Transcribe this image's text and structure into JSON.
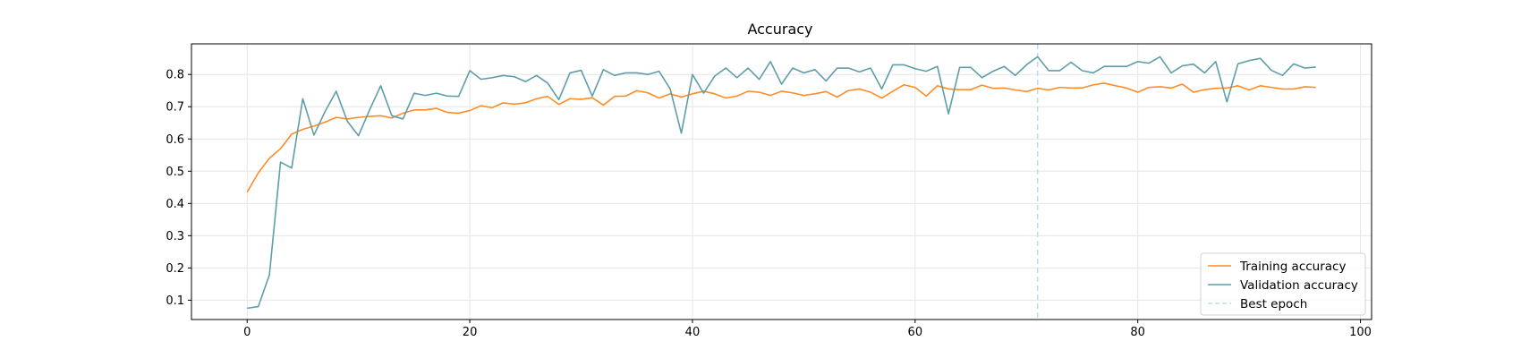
{
  "chart_data": {
    "type": "line",
    "title": "Accuracy",
    "xlabel": "",
    "ylabel": "",
    "xlim": [
      -5,
      101
    ],
    "ylim": [
      0.04,
      0.895
    ],
    "xticks": [
      0,
      20,
      40,
      60,
      80,
      100
    ],
    "yticks": [
      0.1,
      0.2,
      0.3,
      0.4,
      0.5,
      0.6,
      0.7,
      0.8
    ],
    "grid": true,
    "legend_position": "lower-right",
    "x": [
      0,
      1,
      2,
      3,
      4,
      5,
      6,
      7,
      8,
      9,
      10,
      11,
      12,
      13,
      14,
      15,
      16,
      17,
      18,
      19,
      20,
      21,
      22,
      23,
      24,
      25,
      26,
      27,
      28,
      29,
      30,
      31,
      32,
      33,
      34,
      35,
      36,
      37,
      38,
      39,
      40,
      41,
      42,
      43,
      44,
      45,
      46,
      47,
      48,
      49,
      50,
      51,
      52,
      53,
      54,
      55,
      56,
      57,
      58,
      59,
      60,
      61,
      62,
      63,
      64,
      65,
      66,
      67,
      68,
      69,
      70,
      71,
      72,
      73,
      74,
      75,
      76,
      77,
      78,
      79,
      80,
      81,
      82,
      83,
      84,
      85,
      86,
      87,
      88,
      89,
      90,
      91,
      92,
      93,
      94,
      95,
      96
    ],
    "series": [
      {
        "name": "Training accuracy",
        "color": "#ff8c28",
        "values": [
          0.435,
          0.495,
          0.54,
          0.57,
          0.615,
          0.63,
          0.64,
          0.652,
          0.667,
          0.662,
          0.667,
          0.67,
          0.672,
          0.665,
          0.68,
          0.69,
          0.69,
          0.695,
          0.682,
          0.68,
          0.688,
          0.703,
          0.697,
          0.712,
          0.708,
          0.712,
          0.725,
          0.732,
          0.707,
          0.725,
          0.723,
          0.728,
          0.705,
          0.732,
          0.733,
          0.75,
          0.743,
          0.727,
          0.74,
          0.73,
          0.74,
          0.748,
          0.74,
          0.727,
          0.733,
          0.748,
          0.745,
          0.735,
          0.748,
          0.743,
          0.735,
          0.74,
          0.747,
          0.73,
          0.75,
          0.755,
          0.745,
          0.727,
          0.748,
          0.768,
          0.76,
          0.733,
          0.765,
          0.755,
          0.753,
          0.753,
          0.767,
          0.757,
          0.758,
          0.752,
          0.747,
          0.757,
          0.752,
          0.76,
          0.758,
          0.758,
          0.768,
          0.773,
          0.765,
          0.758,
          0.745,
          0.76,
          0.762,
          0.758,
          0.77,
          0.745,
          0.753,
          0.757,
          0.758,
          0.765,
          0.752,
          0.765,
          0.76,
          0.755,
          0.755,
          0.762,
          0.76
        ]
      },
      {
        "name": "Validation accuracy",
        "color": "#5e9ea9",
        "values": [
          0.075,
          0.08,
          0.178,
          0.528,
          0.51,
          0.725,
          0.612,
          0.685,
          0.748,
          0.655,
          0.61,
          0.69,
          0.765,
          0.672,
          0.662,
          0.742,
          0.735,
          0.742,
          0.733,
          0.732,
          0.812,
          0.785,
          0.79,
          0.797,
          0.793,
          0.778,
          0.797,
          0.773,
          0.722,
          0.805,
          0.813,
          0.733,
          0.815,
          0.797,
          0.805,
          0.805,
          0.8,
          0.81,
          0.755,
          0.618,
          0.8,
          0.742,
          0.795,
          0.82,
          0.79,
          0.82,
          0.785,
          0.84,
          0.77,
          0.82,
          0.805,
          0.815,
          0.78,
          0.82,
          0.82,
          0.808,
          0.82,
          0.755,
          0.83,
          0.83,
          0.818,
          0.81,
          0.825,
          0.678,
          0.822,
          0.822,
          0.79,
          0.81,
          0.825,
          0.797,
          0.83,
          0.855,
          0.812,
          0.812,
          0.838,
          0.812,
          0.805,
          0.825,
          0.825,
          0.825,
          0.84,
          0.835,
          0.855,
          0.805,
          0.827,
          0.832,
          0.805,
          0.84,
          0.715,
          0.833,
          0.843,
          0.85,
          0.813,
          0.797,
          0.833,
          0.82,
          0.823
        ]
      }
    ],
    "annotations": [
      {
        "type": "vline",
        "x": 71,
        "label": "Best epoch",
        "color": "#b9dde3",
        "style": "dashed"
      }
    ],
    "legend": [
      {
        "label": "Training accuracy",
        "color": "#ff8c28",
        "style": "solid"
      },
      {
        "label": "Validation accuracy",
        "color": "#5e9ea9",
        "style": "solid"
      },
      {
        "label": "Best epoch",
        "color": "#b9dde3",
        "style": "dashed"
      }
    ]
  }
}
